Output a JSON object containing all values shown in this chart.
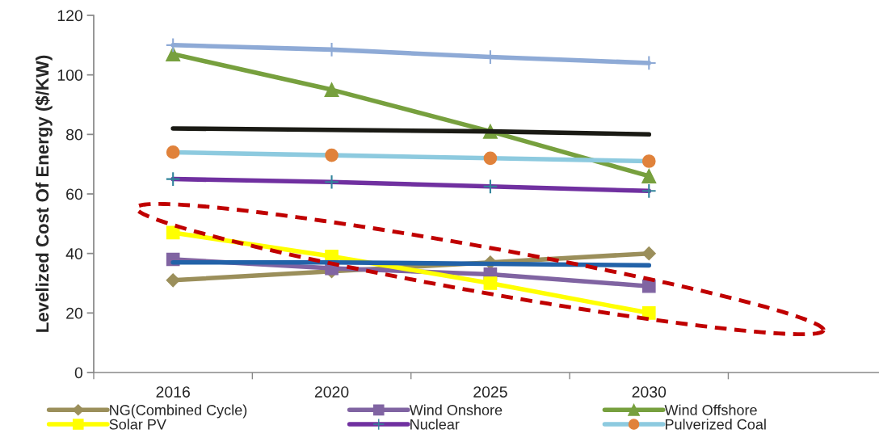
{
  "chart_data": {
    "type": "line",
    "ylabel": "Levelized Cost Of Energy ($/KW)",
    "categories": [
      "2016",
      "2020",
      "2025",
      "2030"
    ],
    "series": [
      {
        "name": "NG(Combined Cycle)",
        "color": "#9b8f5b",
        "marker": "diamond",
        "values": [
          31,
          34,
          37,
          40
        ]
      },
      {
        "name": "Wind Onshore",
        "color": "#8064a2",
        "marker": "square",
        "values": [
          38,
          35,
          33,
          29
        ]
      },
      {
        "name": "Wind Offshore",
        "color": "#77a03e",
        "marker": "triangle",
        "values": [
          107,
          95,
          81,
          66
        ]
      },
      {
        "name": "Solar PV",
        "color": "#ffff00",
        "marker": "square",
        "values": [
          47,
          39,
          30,
          20
        ]
      },
      {
        "name": "Nuclear",
        "color": "#7030a0",
        "marker": "cross",
        "colors": [
          "#31849b",
          "#31849b",
          "#31849b",
          "#31849b"
        ],
        "values": [
          65,
          64,
          62.5,
          61
        ]
      },
      {
        "name": "Pulverized Coal",
        "color": "#8dcadf",
        "marker": "circle",
        "colors": [
          "#e0823b",
          "#e0823b",
          "#e0823b",
          "#e0823b"
        ],
        "values": [
          74,
          73,
          72,
          71
        ]
      },
      {
        "color": "#8eaad6",
        "marker": "cross",
        "values": [
          110,
          108.5,
          106,
          104
        ]
      },
      {
        "color": "#1a1a14",
        "marker": "none",
        "values": [
          82,
          81.5,
          81,
          80
        ]
      },
      {
        "color": "#2262a8",
        "marker": "none",
        "values": [
          37,
          37,
          36.5,
          36
        ]
      }
    ],
    "ylim": [
      0,
      120
    ],
    "yticks": [
      0,
      20,
      40,
      60,
      80,
      100,
      120
    ],
    "grid": false,
    "legend": "bottom"
  }
}
